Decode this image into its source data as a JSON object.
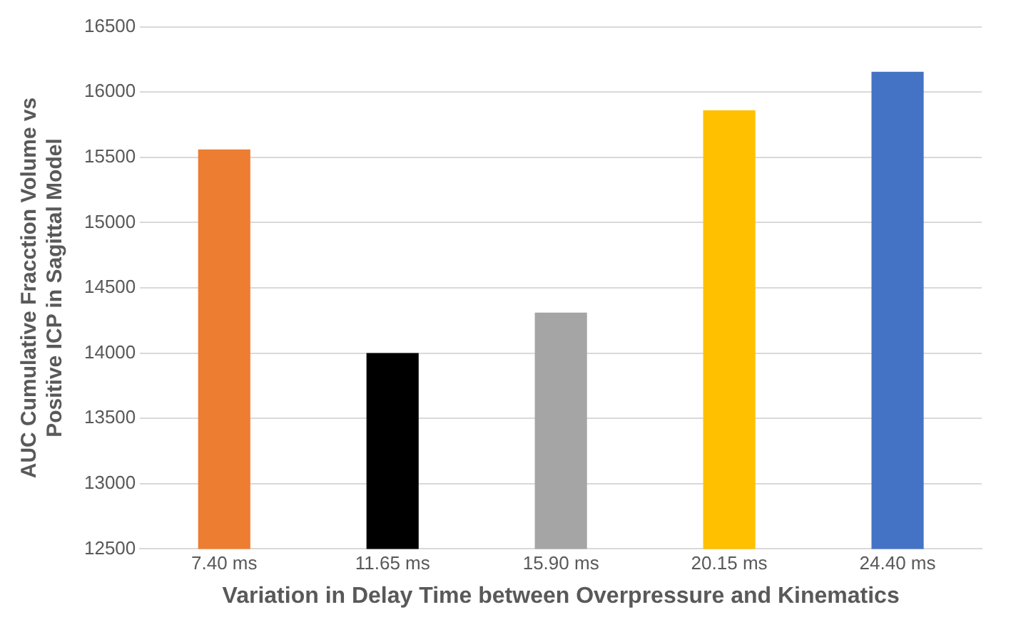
{
  "chart_data": {
    "type": "bar",
    "xlabel": "Variation in Delay Time between Overpressure and Kinematics",
    "ylabel": "AUC Cumulative Fracction Volume vs Positive ICP in Sagittal Model",
    "categories": [
      "7.40 ms",
      "11.65 ms",
      "15.90 ms",
      "20.15 ms",
      "24.40 ms"
    ],
    "values": [
      15560,
      14000,
      14310,
      15860,
      16155
    ],
    "colors": [
      "#ed7d31",
      "#000000",
      "#a5a5a5",
      "#ffc000",
      "#4472c4"
    ],
    "ylim": [
      12500,
      16500
    ],
    "yticks": [
      12500,
      13000,
      13500,
      14000,
      14500,
      15000,
      15500,
      16000,
      16500
    ],
    "grid": "y"
  }
}
